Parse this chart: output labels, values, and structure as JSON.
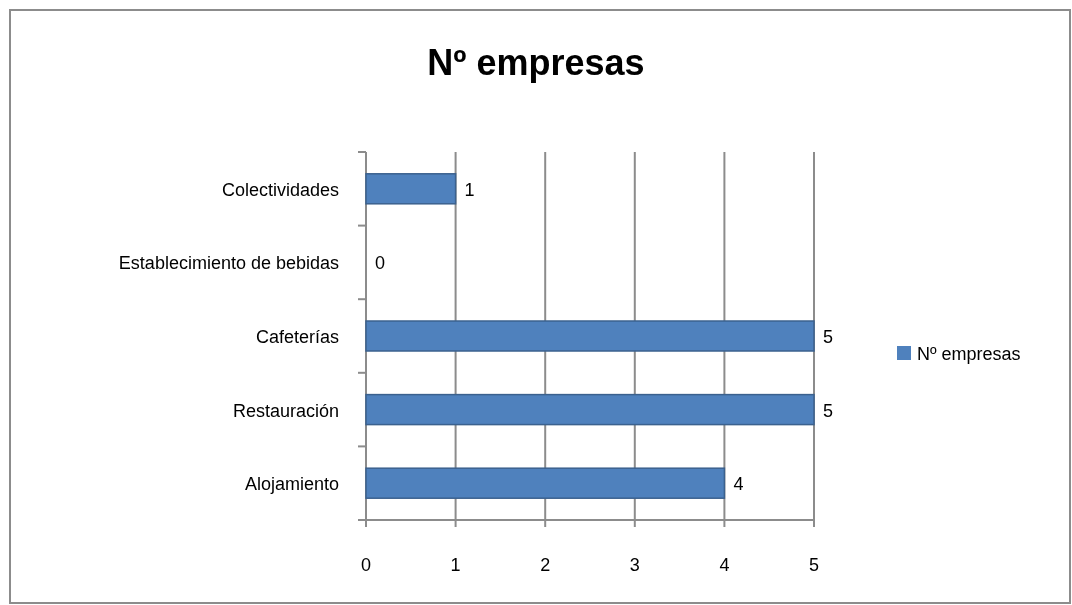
{
  "chart_data": {
    "type": "bar",
    "orientation": "horizontal",
    "title": "Nº empresas",
    "categories": [
      "Colectividades",
      "Establecimiento de bebidas",
      "Cafeterías",
      "Restauración",
      "Alojamiento"
    ],
    "series": [
      {
        "name": "Nº empresas",
        "color": "#4f81bd",
        "values": [
          1,
          0,
          5,
          5,
          4
        ]
      }
    ],
    "xlim": [
      0,
      5
    ],
    "xticks": [
      0,
      1,
      2,
      3,
      4,
      5
    ],
    "grid": "x",
    "legend": "right",
    "data_labels": true
  }
}
